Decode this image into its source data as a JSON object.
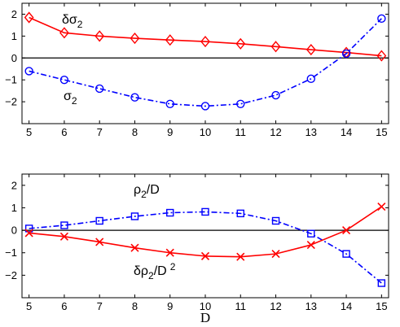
{
  "chart_data": [
    {
      "type": "line",
      "x": [
        5,
        6,
        7,
        8,
        9,
        10,
        11,
        12,
        13,
        14,
        15
      ],
      "xlim": [
        4.8,
        15.2
      ],
      "ylim": [
        -3,
        2.5
      ],
      "xticks": [
        "5",
        "6",
        "7",
        "8",
        "9",
        "10",
        "11",
        "12",
        "13",
        "14",
        "15"
      ],
      "yticks": [
        {
          "value": -2,
          "label": "−2"
        },
        {
          "value": -1,
          "label": "−1"
        },
        {
          "value": 0,
          "label": "0"
        },
        {
          "value": 1,
          "label": "1"
        },
        {
          "value": 2,
          "label": "2"
        }
      ],
      "xlabel": "",
      "grid": false,
      "zero_line": true,
      "series": [
        {
          "name": "δσ",
          "subscript": "2",
          "color": "#ff0000",
          "line_style": "solid",
          "marker": "diamond",
          "values": [
            1.85,
            1.15,
            1.0,
            0.9,
            0.82,
            0.75,
            0.65,
            0.52,
            0.38,
            0.25,
            0.1
          ]
        },
        {
          "name": "σ",
          "subscript": "2",
          "color": "#0000ff",
          "line_style": "dash-dot",
          "marker": "circle",
          "values": [
            -0.6,
            -1.0,
            -1.4,
            -1.8,
            -2.1,
            -2.2,
            -2.1,
            -1.7,
            -0.95,
            0.2,
            1.8
          ]
        }
      ]
    },
    {
      "type": "line",
      "x": [
        5,
        6,
        7,
        8,
        9,
        10,
        11,
        12,
        13,
        14,
        15
      ],
      "xlim": [
        4.8,
        15.2
      ],
      "ylim": [
        -3,
        2.5
      ],
      "xticks": [
        "5",
        "6",
        "7",
        "8",
        "9",
        "10",
        "11",
        "12",
        "13",
        "14",
        "15"
      ],
      "yticks": [
        {
          "value": -2,
          "label": "−2"
        },
        {
          "value": -1,
          "label": "−1"
        },
        {
          "value": 0,
          "label": "0"
        },
        {
          "value": 1,
          "label": "1"
        },
        {
          "value": 2,
          "label": "2"
        }
      ],
      "xlabel": "D",
      "grid": false,
      "zero_line": true,
      "series": [
        {
          "name": "ρ",
          "subscript": "2",
          "suffix": "/D",
          "color": "#0000ff",
          "line_style": "dash-dot",
          "marker": "square",
          "values": [
            0.08,
            0.22,
            0.42,
            0.62,
            0.78,
            0.82,
            0.75,
            0.42,
            -0.15,
            -1.05,
            -2.35
          ]
        },
        {
          "name": "δρ",
          "subscript": "2",
          "suffix": "/D",
          "superscript": "2",
          "color": "#ff0000",
          "line_style": "solid",
          "marker": "x",
          "values": [
            -0.12,
            -0.28,
            -0.52,
            -0.78,
            -1.0,
            -1.15,
            -1.18,
            -1.05,
            -0.65,
            0.0,
            1.05
          ]
        }
      ]
    }
  ]
}
